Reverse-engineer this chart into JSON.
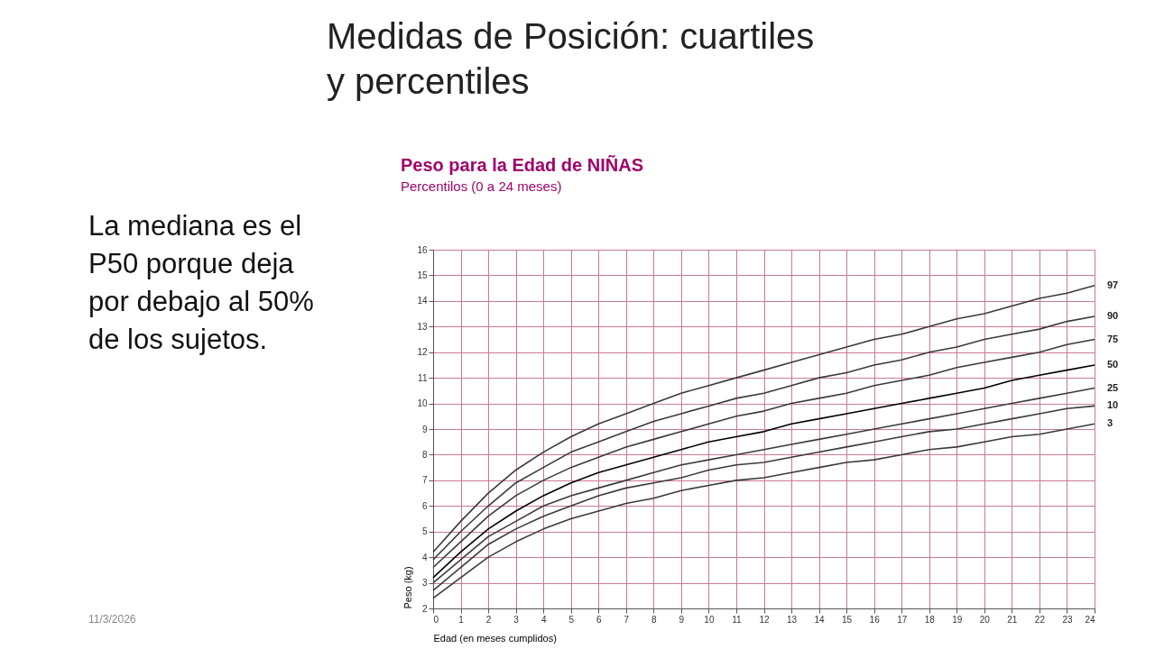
{
  "chart_data": {
    "type": "line",
    "title": "Peso para la Edad de NIÑAS",
    "subtitle": "Percentilos (0 a 24 meses)",
    "xlabel": "Edad (en meses cumplidos)",
    "ylabel": "Peso (kg)",
    "x": [
      0,
      1,
      2,
      3,
      4,
      5,
      6,
      7,
      8,
      9,
      10,
      11,
      12,
      13,
      14,
      15,
      16,
      17,
      18,
      19,
      20,
      21,
      22,
      23,
      24
    ],
    "xlim": [
      0,
      24
    ],
    "xticks": [
      0,
      1,
      2,
      3,
      4,
      5,
      6,
      7,
      8,
      9,
      10,
      11,
      12,
      13,
      14,
      15,
      16,
      17,
      18,
      19,
      20,
      21,
      22,
      23,
      24
    ],
    "ylim": [
      2,
      16
    ],
    "yticks": [
      2,
      3,
      4,
      5,
      6,
      7,
      8,
      9,
      10,
      11,
      12,
      13,
      14,
      15,
      16
    ],
    "grid": true,
    "legend": false,
    "marker": "none",
    "line_style": "solid",
    "series": [
      {
        "name": "97",
        "color": "#3a3a3a",
        "values": [
          4.2,
          5.4,
          6.5,
          7.4,
          8.1,
          8.7,
          9.2,
          9.6,
          10.0,
          10.4,
          10.7,
          11.0,
          11.3,
          11.6,
          11.9,
          12.2,
          12.5,
          12.7,
          13.0,
          13.3,
          13.5,
          13.8,
          14.1,
          14.3,
          14.6
        ]
      },
      {
        "name": "90",
        "color": "#3a3a3a",
        "values": [
          3.9,
          5.0,
          6.0,
          6.9,
          7.5,
          8.1,
          8.5,
          8.9,
          9.3,
          9.6,
          9.9,
          10.2,
          10.4,
          10.7,
          11.0,
          11.2,
          11.5,
          11.7,
          12.0,
          12.2,
          12.5,
          12.7,
          12.9,
          13.2,
          13.4
        ]
      },
      {
        "name": "75",
        "color": "#3a3a3a",
        "values": [
          3.6,
          4.6,
          5.6,
          6.4,
          7.0,
          7.5,
          7.9,
          8.3,
          8.6,
          8.9,
          9.2,
          9.5,
          9.7,
          10.0,
          10.2,
          10.4,
          10.7,
          10.9,
          11.1,
          11.4,
          11.6,
          11.8,
          12.0,
          12.3,
          12.5
        ]
      },
      {
        "name": "50",
        "color": "#000000",
        "values": [
          3.2,
          4.2,
          5.1,
          5.8,
          6.4,
          6.9,
          7.3,
          7.6,
          7.9,
          8.2,
          8.5,
          8.7,
          8.9,
          9.2,
          9.4,
          9.6,
          9.8,
          10.0,
          10.2,
          10.4,
          10.6,
          10.9,
          11.1,
          11.3,
          11.5
        ]
      },
      {
        "name": "25",
        "color": "#3a3a3a",
        "values": [
          3.0,
          3.9,
          4.8,
          5.4,
          6.0,
          6.4,
          6.7,
          7.0,
          7.3,
          7.6,
          7.8,
          8.0,
          8.2,
          8.4,
          8.6,
          8.8,
          9.0,
          9.2,
          9.4,
          9.6,
          9.8,
          10.0,
          10.2,
          10.4,
          10.6
        ]
      },
      {
        "name": "10",
        "color": "#3a3a3a",
        "values": [
          2.7,
          3.6,
          4.5,
          5.1,
          5.6,
          6.0,
          6.4,
          6.7,
          6.9,
          7.1,
          7.4,
          7.6,
          7.7,
          7.9,
          8.1,
          8.3,
          8.5,
          8.7,
          8.9,
          9.0,
          9.2,
          9.4,
          9.6,
          9.8,
          9.9
        ]
      },
      {
        "name": "3",
        "color": "#3a3a3a",
        "values": [
          2.4,
          3.2,
          4.0,
          4.6,
          5.1,
          5.5,
          5.8,
          6.1,
          6.3,
          6.6,
          6.8,
          7.0,
          7.1,
          7.3,
          7.5,
          7.7,
          7.8,
          8.0,
          8.2,
          8.3,
          8.5,
          8.7,
          8.8,
          9.0,
          9.2
        ]
      }
    ],
    "annotations": [
      "Medidas de Posición: cuartiles y percentiles",
      "La mediana es el P50 porque deja por debajo al 50% de los sujetos.",
      "11/3/2026"
    ]
  }
}
